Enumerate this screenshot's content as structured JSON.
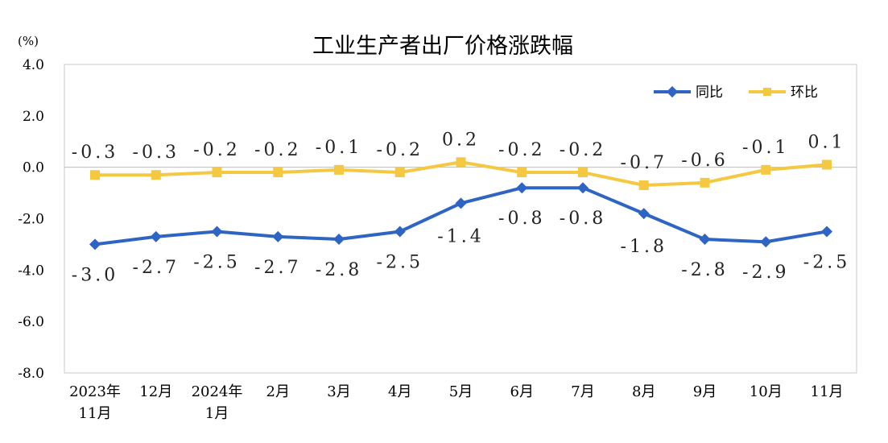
{
  "chart_data": {
    "type": "line",
    "title": "工业生产者出厂价格涨跌幅",
    "unit": "(%)",
    "categories": [
      "2023年|11月",
      "12月",
      "2024年|1月",
      "2月",
      "3月",
      "4月",
      "5月",
      "6月",
      "7月",
      "8月",
      "9月",
      "10月",
      "11月"
    ],
    "ylim": [
      -8.0,
      4.0
    ],
    "yticks": [
      "4.0",
      "2.0",
      "0.0",
      "-2.0",
      "-4.0",
      "-6.0",
      "-8.0"
    ],
    "legend_position": "top-right",
    "grid": false,
    "series": [
      {
        "name": "同比",
        "color": "#2E64C4",
        "marker": "diamond",
        "values": [
          -3.0,
          -2.7,
          -2.5,
          -2.7,
          -2.8,
          -2.5,
          -1.4,
          -0.8,
          -0.8,
          -1.8,
          -2.8,
          -2.9,
          -2.5
        ],
        "labels": [
          "-3.0",
          "-2.7",
          "-2.5",
          "-2.7",
          "-2.8",
          "-2.5",
          "-1.4",
          "-0.8",
          "-0.8",
          "-1.8",
          "-2.8",
          "-2.9",
          "-2.5"
        ]
      },
      {
        "name": "环比",
        "color": "#F5C842",
        "marker": "square",
        "values": [
          -0.3,
          -0.3,
          -0.2,
          -0.2,
          -0.1,
          -0.2,
          0.2,
          -0.2,
          -0.2,
          -0.7,
          -0.6,
          -0.1,
          0.1
        ],
        "labels": [
          "-0.3",
          "-0.3",
          "-0.2",
          "-0.2",
          "-0.1",
          "-0.2",
          "0.2",
          "-0.2",
          "-0.2",
          "-0.7",
          "-0.6",
          "-0.1",
          "0.1"
        ]
      }
    ]
  }
}
